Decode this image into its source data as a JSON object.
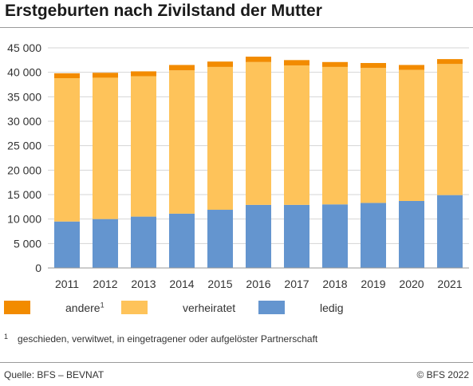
{
  "title": "Erstgeburten nach Zivilstand der Mutter",
  "colors": {
    "ledig": "#6495cf",
    "verheiratet": "#fec35a",
    "andere": "#f28b00",
    "grid": "#d5d5d5",
    "axis": "#999999"
  },
  "legend": [
    {
      "key": "andere",
      "label": "andere",
      "sup": "1",
      "color": "#f28b00"
    },
    {
      "key": "verheiratet",
      "label": "verheiratet",
      "sup": "",
      "color": "#fec35a"
    },
    {
      "key": "ledig",
      "label": "ledig",
      "sup": "",
      "color": "#6495cf"
    }
  ],
  "footnote": {
    "mark": "1",
    "text": "geschieden, verwitwet, in eingetragener oder aufgelöster Partnerschaft"
  },
  "source": "Quelle: BFS – BEVNAT",
  "copyright": "© BFS 2022",
  "chart_data": {
    "type": "bar",
    "stacked": true,
    "categories": [
      "2011",
      "2012",
      "2013",
      "2014",
      "2015",
      "2016",
      "2017",
      "2018",
      "2019",
      "2020",
      "2021"
    ],
    "series": [
      {
        "name": "ledig",
        "color": "#6495cf",
        "values": [
          9500,
          10000,
          10500,
          11100,
          11900,
          12900,
          12900,
          13000,
          13300,
          13700,
          14900
        ]
      },
      {
        "name": "verheiratet",
        "color": "#fec35a",
        "values": [
          29300,
          28900,
          28700,
          29300,
          29200,
          29200,
          28500,
          28100,
          27600,
          26800,
          26800
        ]
      },
      {
        "name": "andere",
        "color": "#f28b00",
        "values": [
          1000,
          1000,
          1000,
          1100,
          1100,
          1100,
          1100,
          1000,
          1000,
          1000,
          1000
        ]
      }
    ],
    "ylim": [
      0,
      45000
    ],
    "yticks": [
      0,
      5000,
      10000,
      15000,
      20000,
      25000,
      30000,
      35000,
      40000,
      45000
    ],
    "ytick_labels": [
      "0",
      "5 000",
      "10 000",
      "15 000",
      "20 000",
      "25 000",
      "30 000",
      "35 000",
      "40 000",
      "45 000"
    ],
    "grid": true,
    "legend_position": "bottom"
  }
}
